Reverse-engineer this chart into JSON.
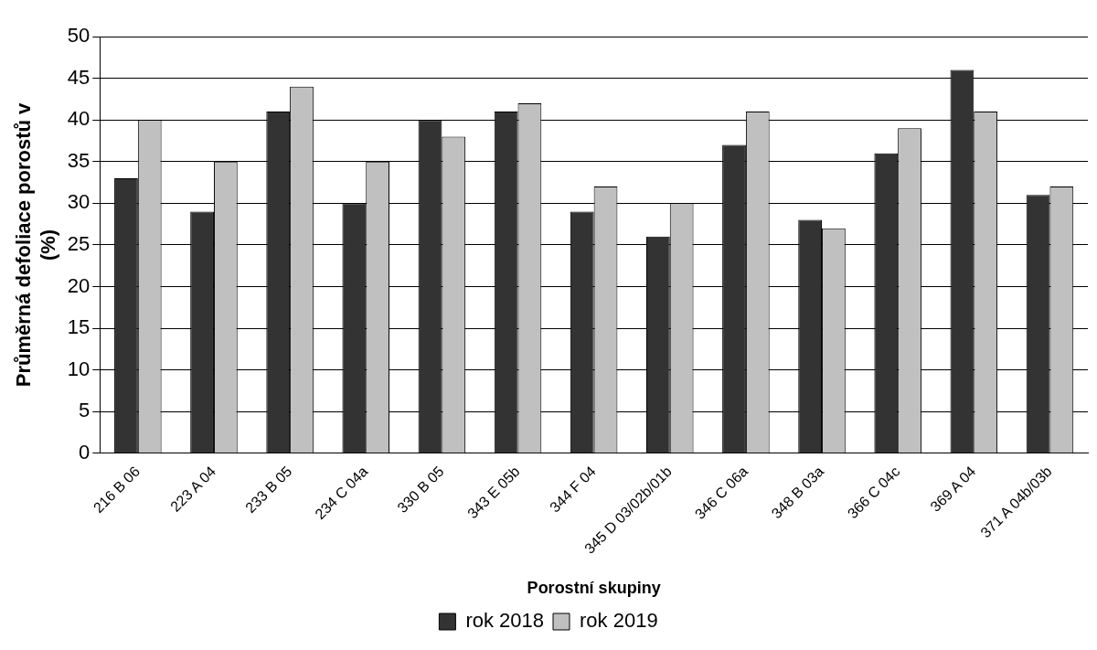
{
  "chart_data": {
    "type": "bar",
    "xlabel": "Porostní skupiny",
    "ylabel": "Průměrná defoliace porostů v (%)",
    "categories": [
      "216 B 06",
      "223 A 04",
      "233 B 05",
      "234 C 04a",
      "330 B 05",
      "343 E 05b",
      "344 F 04",
      "345 D 03/02b/01b",
      "346 C 06a",
      "348 B 03a",
      "366 C 04c",
      "369 A 04",
      "371 A 04b/03b"
    ],
    "series": [
      {
        "name": "rok 2018",
        "color": "#333333",
        "values": [
          33,
          29,
          41,
          30,
          40,
          41,
          29,
          26,
          37,
          28,
          36,
          46,
          31
        ]
      },
      {
        "name": "rok 2019",
        "color": "#c0c0c0",
        "values": [
          40,
          35,
          44,
          35,
          38,
          42,
          32,
          30,
          41,
          27,
          39,
          41,
          32
        ]
      }
    ],
    "ylim": [
      0,
      50
    ],
    "yticks": [
      0,
      5,
      10,
      15,
      20,
      25,
      30,
      35,
      40,
      45,
      50
    ],
    "grid": "y",
    "legend": "bottom"
  }
}
